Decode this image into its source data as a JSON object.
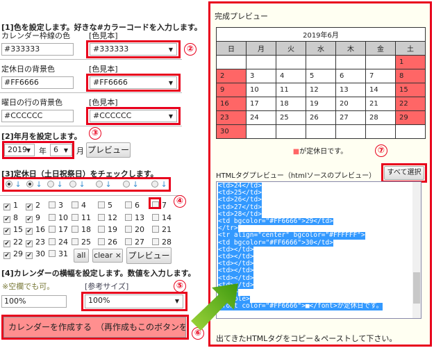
{
  "section1": {
    "heading": "[1]色を設定します。好きな#カラーコードを入力します。",
    "swatch_label": "[色見本]",
    "fields": [
      {
        "label": "カレンダー枠線の色",
        "value": "#333333",
        "swatch": "#333333"
      },
      {
        "label": "定休日の背景色",
        "value": "#FF6666",
        "swatch": "#FF6666"
      },
      {
        "label": "曜日の行の背景色",
        "value": "#CCCCCC",
        "swatch": "#CCCCCC"
      }
    ]
  },
  "section2": {
    "heading": "[2]年月を設定します。",
    "year": "2019",
    "year_unit": "年",
    "month": "6",
    "month_unit": "月",
    "preview": "プレビュー"
  },
  "section3": {
    "heading": "[3]定休日（土日祝祭日）をチェックします。",
    "arrow": "↓",
    "weekday_radios": [
      true,
      true,
      false,
      false,
      false,
      false,
      false
    ],
    "days": [
      {
        "d": "1",
        "c": true
      },
      {
        "d": "2",
        "c": true
      },
      {
        "d": "3",
        "c": false
      },
      {
        "d": "4",
        "c": false
      },
      {
        "d": "5",
        "c": false
      },
      {
        "d": "6",
        "c": false
      },
      {
        "d": "7",
        "c": false
      },
      {
        "d": "8",
        "c": true
      },
      {
        "d": "9",
        "c": true
      },
      {
        "d": "10",
        "c": false
      },
      {
        "d": "11",
        "c": false
      },
      {
        "d": "12",
        "c": false
      },
      {
        "d": "13",
        "c": false
      },
      {
        "d": "14",
        "c": false
      },
      {
        "d": "15",
        "c": true
      },
      {
        "d": "16",
        "c": true
      },
      {
        "d": "17",
        "c": false
      },
      {
        "d": "18",
        "c": false
      },
      {
        "d": "19",
        "c": false
      },
      {
        "d": "20",
        "c": false
      },
      {
        "d": "21",
        "c": false
      },
      {
        "d": "22",
        "c": true
      },
      {
        "d": "23",
        "c": true
      },
      {
        "d": "24",
        "c": false
      },
      {
        "d": "25",
        "c": false
      },
      {
        "d": "26",
        "c": false
      },
      {
        "d": "27",
        "c": false
      },
      {
        "d": "28",
        "c": false
      },
      {
        "d": "29",
        "c": true
      },
      {
        "d": "30",
        "c": true
      },
      {
        "d": "31",
        "c": false
      }
    ],
    "all": "all",
    "clear": "clear ×",
    "preview": "プレビュー"
  },
  "section4": {
    "heading": "[4]カレンダーの横幅を設定します。数値を入力します。",
    "note": "※空欄でも可。",
    "ref_label": "[参考サイズ]",
    "value": "100%",
    "ref_value": "100%"
  },
  "create_button": "カレンダーを作成する　（再作成もこのボタンをクリ",
  "annotations": [
    "②",
    "③",
    "④",
    "⑤",
    "⑥",
    "⑦"
  ],
  "preview": {
    "title": "完成プレビュー",
    "cal_title": "2019年6月",
    "weekdays": [
      "日",
      "月",
      "火",
      "水",
      "木",
      "金",
      "土"
    ],
    "weeks": [
      [
        "",
        "",
        "",
        "",
        "",
        "",
        "1"
      ],
      [
        "2",
        "3",
        "4",
        "5",
        "6",
        "7",
        "8"
      ],
      [
        "9",
        "10",
        "11",
        "12",
        "13",
        "14",
        "15"
      ],
      [
        "16",
        "17",
        "18",
        "19",
        "20",
        "21",
        "22"
      ],
      [
        "23",
        "24",
        "25",
        "26",
        "27",
        "28",
        "29"
      ],
      [
        "30",
        "",
        "",
        "",
        "",
        "",
        ""
      ]
    ],
    "holidays": [
      "1",
      "2",
      "8",
      "9",
      "15",
      "16",
      "22",
      "23",
      "29",
      "30"
    ],
    "legend_mark": "■",
    "legend": "が定休日です。"
  },
  "html_preview": {
    "label": "HTMLタグプレビュー（htmlソースのプレビュー）",
    "select_all": "すべて選択",
    "lines": [
      "<td>24</td>",
      "<td>25</td>",
      "<td>26</td>",
      "<td>27</td>",
      "<td>28</td>",
      "<td bgcolor=\"#FF6666\">29</td>",
      "</tr>",
      "<tr align=\"center\" bgcolor=\"#FFFFFF\">",
      "<td bgcolor=\"#FF6666\">30</td>",
      "<td></td>",
      "<td></td>",
      "<td></td>",
      "<td></td>",
      "<td></td>",
      "<td></td>",
      "</tr>",
      "</table>",
      "<font color=\"#FF6666\">■</font>が定休日です。"
    ],
    "footer": "出てきたHTMLタグをコピー＆ペーストして下さい。"
  },
  "colors": {
    "accent": "#e8001c",
    "holiday": "#FF6666",
    "weekday_row": "#CCCCCC",
    "selection": "#3399ff"
  }
}
